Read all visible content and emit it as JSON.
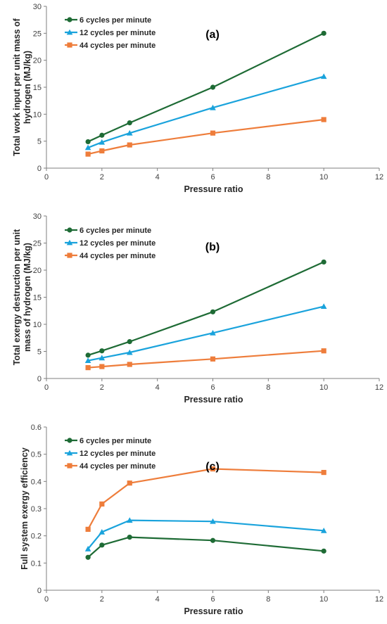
{
  "chart_data": [
    {
      "type": "line",
      "panel_label": "(a)",
      "xlabel": "Pressure ratio",
      "ylabel": "Total work input per unit mass of hydrogen (MJ/kg)",
      "ylabel_lines": [
        "Total work input per unit mass of",
        "hydrogen (MJ/kg)"
      ],
      "xlim": [
        0,
        12
      ],
      "ylim": [
        0,
        30
      ],
      "xticks": [
        0,
        2,
        4,
        6,
        8,
        10,
        12
      ],
      "yticks": [
        0,
        5,
        10,
        15,
        20,
        25,
        30
      ],
      "xtick_labels": [
        "0",
        "2",
        "4",
        "6",
        "8",
        "10",
        "12"
      ],
      "ytick_labels": [
        "0",
        "5",
        "10",
        "15",
        "20",
        "25",
        "30"
      ],
      "grid": false,
      "legend_position": "top-left",
      "x": [
        1.5,
        2,
        3,
        6,
        10
      ],
      "series": [
        {
          "name": "6 cycles per minute",
          "values": [
            4.9,
            6.1,
            8.4,
            15.0,
            25.0
          ],
          "color": "#1e6b35",
          "marker": "circle"
        },
        {
          "name": "12 cycles per minute",
          "values": [
            3.8,
            4.8,
            6.5,
            11.2,
            17.0
          ],
          "color": "#1aa3dc",
          "marker": "triangle"
        },
        {
          "name": "44 cycles per minute",
          "values": [
            2.6,
            3.2,
            4.3,
            6.5,
            9.0
          ],
          "color": "#ee7d3b",
          "marker": "square"
        }
      ]
    },
    {
      "type": "line",
      "panel_label": "(b)",
      "xlabel": "Pressure ratio",
      "ylabel": "Total exergy destruction per unit mass of hydrogen (MJ/kg)",
      "ylabel_lines": [
        "Total exergy destruction per unit",
        "mass of hydrogen (MJ/kg)"
      ],
      "xlim": [
        0,
        12
      ],
      "ylim": [
        0,
        30
      ],
      "xticks": [
        0,
        2,
        4,
        6,
        8,
        10,
        12
      ],
      "yticks": [
        0,
        5,
        10,
        15,
        20,
        25,
        30
      ],
      "xtick_labels": [
        "0",
        "2",
        "4",
        "6",
        "8",
        "10",
        "12"
      ],
      "ytick_labels": [
        "0",
        "5",
        "10",
        "15",
        "20",
        "25",
        "30"
      ],
      "grid": false,
      "legend_position": "top-left",
      "x": [
        1.5,
        2,
        3,
        6,
        10
      ],
      "series": [
        {
          "name": "6 cycles per minute",
          "values": [
            4.3,
            5.1,
            6.8,
            12.3,
            21.5
          ],
          "color": "#1e6b35",
          "marker": "circle"
        },
        {
          "name": "12 cycles per minute",
          "values": [
            3.3,
            3.8,
            4.8,
            8.4,
            13.3
          ],
          "color": "#1aa3dc",
          "marker": "triangle"
        },
        {
          "name": "44 cycles per minute",
          "values": [
            2.0,
            2.2,
            2.6,
            3.6,
            5.1
          ],
          "color": "#ee7d3b",
          "marker": "square"
        }
      ]
    },
    {
      "type": "line",
      "panel_label": "(c)",
      "xlabel": "Pressure ratio",
      "ylabel": "Full system exergy efficiency",
      "ylabel_lines": [
        "Full system exergy efficiency"
      ],
      "xlim": [
        0,
        12
      ],
      "ylim": [
        0,
        0.6
      ],
      "xticks": [
        0,
        2,
        4,
        6,
        8,
        10,
        12
      ],
      "yticks": [
        0,
        0.1,
        0.2,
        0.3,
        0.4,
        0.5,
        0.6
      ],
      "xtick_labels": [
        "0",
        "2",
        "4",
        "6",
        "8",
        "10",
        "12"
      ],
      "ytick_labels": [
        "0",
        "0.1",
        "0.2",
        "0.3",
        "0.4",
        "0.5",
        "0.6"
      ],
      "grid": false,
      "legend_position": "top-left",
      "x": [
        1.5,
        2,
        3,
        6,
        10
      ],
      "series": [
        {
          "name": "6 cycles per minute",
          "values": [
            0.121,
            0.166,
            0.195,
            0.183,
            0.144
          ],
          "color": "#1e6b35",
          "marker": "circle"
        },
        {
          "name": "12 cycles per minute",
          "values": [
            0.152,
            0.214,
            0.257,
            0.253,
            0.219
          ],
          "color": "#1aa3dc",
          "marker": "triangle"
        },
        {
          "name": "44 cycles per minute",
          "values": [
            0.224,
            0.317,
            0.394,
            0.446,
            0.433
          ],
          "color": "#ee7d3b",
          "marker": "square"
        }
      ]
    }
  ]
}
